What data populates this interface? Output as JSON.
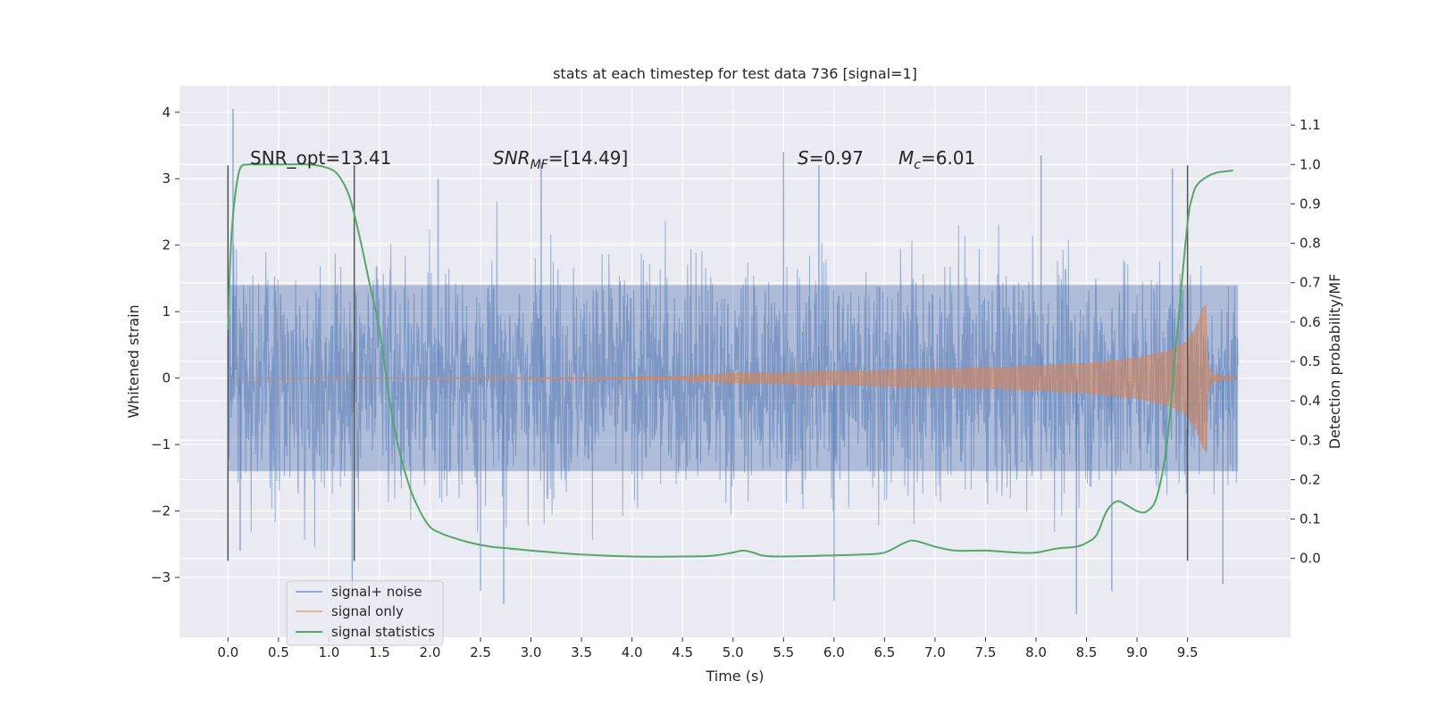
{
  "chart_data": {
    "type": "line",
    "title": "stats at each timestep for test data 736 [signal=1]",
    "xlabel": "Time (s)",
    "ylabel_left": "Whitened strain",
    "ylabel_right": "Detection probability/MF",
    "xlim": [
      -0.48,
      10.52
    ],
    "ylim_left": [
      -3.9,
      4.4
    ],
    "ylim_right": [
      -0.2,
      1.2
    ],
    "x_ticks": [
      "0.0",
      "0.5",
      "1.0",
      "1.5",
      "2.0",
      "2.5",
      "3.0",
      "3.5",
      "4.0",
      "4.5",
      "5.0",
      "5.5",
      "6.0",
      "6.5",
      "7.0",
      "7.5",
      "8.0",
      "8.5",
      "9.0",
      "9.5"
    ],
    "y_left_ticks": [
      "4",
      "3",
      "2",
      "1",
      "0",
      "−1",
      "−2",
      "−3"
    ],
    "y_right_ticks": [
      "1.1",
      "1.0",
      "0.9",
      "0.8",
      "0.7",
      "0.6",
      "0.5",
      "0.4",
      "0.3",
      "0.2",
      "0.1",
      "0.0"
    ],
    "grid": true,
    "legend_position": "lower-left",
    "background": "#eaeaf2",
    "colors": {
      "signal_noise": "#4c72b0",
      "signal_only": "#dd8452",
      "signal_statistics": "#55a868",
      "vlines": "#555555"
    },
    "annotations": {
      "snr_opt": "SNR_opt=13.41",
      "snr_mf_main": "SNR",
      "snr_mf_sub": "MF",
      "snr_mf_value": "=[14.49]",
      "s_sym": "S",
      "s_value": "=0.97",
      "mc_main": "M",
      "mc_sub": "c",
      "mc_value": "=6.01"
    },
    "series": [
      {
        "name": "signal+ noise",
        "axis": "left",
        "style": "dense noise trace, approx. 1-sigma band ±1.4, peaks to ~4.0 and ~−3.6",
        "x_range": [
          0.0,
          10.0
        ],
        "envelope_upper": 1.4,
        "envelope_lower": -1.4,
        "peaks": [
          {
            "x": 0.05,
            "y": 4.05
          },
          {
            "x": 0.12,
            "y": -2.6
          },
          {
            "x": 1.23,
            "y": -3.2
          },
          {
            "x": 2.5,
            "y": -3.2
          },
          {
            "x": 2.73,
            "y": -3.4
          },
          {
            "x": 2.08,
            "y": 3.0
          },
          {
            "x": 3.1,
            "y": 3.25
          },
          {
            "x": 5.5,
            "y": 3.4
          },
          {
            "x": 5.85,
            "y": 3.2
          },
          {
            "x": 6.0,
            "y": -3.35
          },
          {
            "x": 8.4,
            "y": -3.55
          },
          {
            "x": 8.05,
            "y": 3.35
          },
          {
            "x": 8.75,
            "y": -3.2
          },
          {
            "x": 9.35,
            "y": 3.15
          },
          {
            "x": 9.85,
            "y": -3.1
          }
        ]
      },
      {
        "name": "signal only",
        "axis": "left",
        "style": "chirp, amplitude envelope",
        "envelope": [
          {
            "x": 0.0,
            "y": 0.0
          },
          {
            "x": 4.0,
            "y": 0.01
          },
          {
            "x": 4.5,
            "y": 0.03
          },
          {
            "x": 5.0,
            "y": 0.07
          },
          {
            "x": 6.0,
            "y": 0.1
          },
          {
            "x": 7.0,
            "y": 0.13
          },
          {
            "x": 8.0,
            "y": 0.18
          },
          {
            "x": 8.5,
            "y": 0.22
          },
          {
            "x": 9.0,
            "y": 0.3
          },
          {
            "x": 9.3,
            "y": 0.4
          },
          {
            "x": 9.5,
            "y": 0.55
          },
          {
            "x": 9.6,
            "y": 0.8
          },
          {
            "x": 9.65,
            "y": 1.05
          },
          {
            "x": 9.68,
            "y": 1.1
          },
          {
            "x": 9.7,
            "y": 0.2
          },
          {
            "x": 9.75,
            "y": 0.05
          },
          {
            "x": 10.0,
            "y": 0.0
          }
        ]
      },
      {
        "name": "signal statistics",
        "axis": "right",
        "x": [
          0.0,
          0.03,
          0.07,
          0.12,
          0.2,
          0.3,
          0.5,
          0.8,
          1.0,
          1.1,
          1.2,
          1.3,
          1.4,
          1.5,
          1.6,
          1.7,
          1.8,
          1.9,
          2.0,
          2.1,
          2.2,
          2.4,
          2.6,
          2.8,
          3.0,
          3.5,
          4.0,
          4.5,
          4.8,
          5.0,
          5.1,
          5.2,
          5.3,
          5.5,
          6.0,
          6.3,
          6.5,
          6.7,
          6.8,
          7.0,
          7.2,
          7.5,
          7.8,
          8.0,
          8.2,
          8.4,
          8.5,
          8.6,
          8.7,
          8.8,
          8.9,
          9.0,
          9.1,
          9.2,
          9.3,
          9.4,
          9.5,
          9.55,
          9.6,
          9.7,
          9.8,
          9.9,
          9.95
        ],
        "y": [
          0.58,
          0.8,
          0.92,
          0.99,
          1.0,
          1.0,
          1.0,
          1.0,
          0.99,
          0.97,
          0.92,
          0.82,
          0.7,
          0.58,
          0.4,
          0.27,
          0.18,
          0.12,
          0.08,
          0.065,
          0.055,
          0.04,
          0.03,
          0.025,
          0.02,
          0.01,
          0.005,
          0.005,
          0.007,
          0.015,
          0.02,
          0.015,
          0.007,
          0.005,
          0.008,
          0.01,
          0.015,
          0.04,
          0.045,
          0.03,
          0.02,
          0.02,
          0.015,
          0.015,
          0.025,
          0.03,
          0.04,
          0.06,
          0.12,
          0.145,
          0.135,
          0.12,
          0.12,
          0.16,
          0.3,
          0.58,
          0.85,
          0.92,
          0.95,
          0.97,
          0.98,
          0.983,
          0.985
        ]
      }
    ],
    "vertical_lines": [
      {
        "x": 0.0,
        "ymin": -2.75,
        "ymax": 3.2
      },
      {
        "x": 1.25,
        "ymin": -2.75,
        "ymax": 3.2
      },
      {
        "x": 9.5,
        "ymin": -2.75,
        "ymax": 3.2
      }
    ],
    "legend": [
      {
        "label": "signal+ noise",
        "series": "signal_noise"
      },
      {
        "label": "signal only",
        "series": "signal_only"
      },
      {
        "label": "signal statistics",
        "series": "signal_statistics"
      }
    ]
  }
}
